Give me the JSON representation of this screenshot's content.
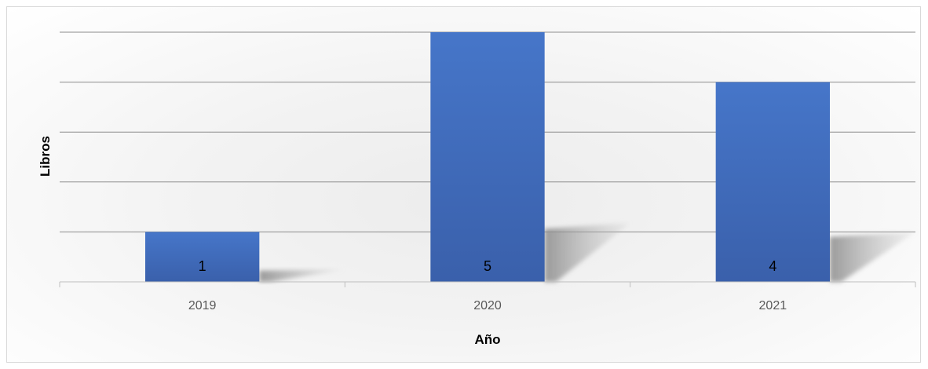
{
  "chart_data": {
    "type": "bar",
    "categories": [
      "2019",
      "2020",
      "2021"
    ],
    "values": [
      1,
      5,
      4
    ],
    "title": "",
    "xlabel": "Año",
    "ylabel": "Libros",
    "ylim": [
      0,
      5
    ],
    "grid": true,
    "data_labels": true,
    "colors": {
      "bar": "#4472c4",
      "bar_dark": "#3a62ad",
      "gridline": "#8c8c8c",
      "axis": "#bfbfbf",
      "shadow": "#9e9e9e"
    }
  }
}
